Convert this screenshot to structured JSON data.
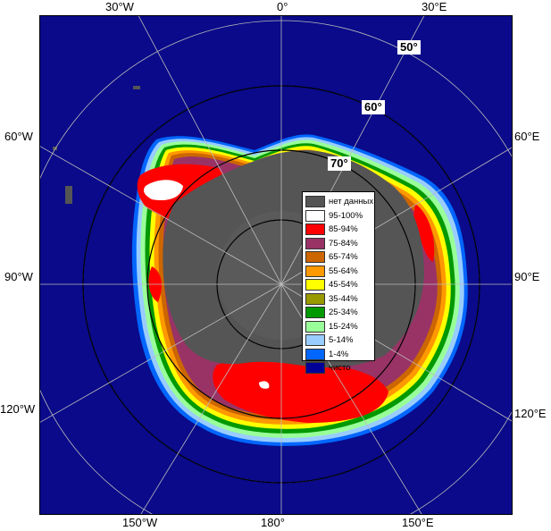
{
  "map": {
    "longitude_labels_top": [
      "30°W",
      "0°",
      "30°E"
    ],
    "longitude_labels_bottom": [
      "150°W",
      "180°",
      "150°E"
    ],
    "longitude_labels_left": [
      "60°W",
      "90°W",
      "120°W"
    ],
    "longitude_labels_right": [
      "60°E",
      "90°E",
      "120°E"
    ],
    "latitude_labels": [
      "50°",
      "60°",
      "70°"
    ]
  },
  "colors": {
    "open_water": "#0a0a8a",
    "no_data": "#555555",
    "land": "#666666"
  },
  "legend": {
    "items": [
      {
        "label": "нет данных",
        "color": "#555555"
      },
      {
        "label": "95-100%",
        "color": "#ffffff"
      },
      {
        "label": "85-94%",
        "color": "#ff0000"
      },
      {
        "label": "75-84%",
        "color": "#993366"
      },
      {
        "label": "65-74%",
        "color": "#cc6600"
      },
      {
        "label": "55-64%",
        "color": "#ff9900"
      },
      {
        "label": "45-54%",
        "color": "#ffff00"
      },
      {
        "label": "35-44%",
        "color": "#999900"
      },
      {
        "label": "25-34%",
        "color": "#009900"
      },
      {
        "label": "15-24%",
        "color": "#99ff99"
      },
      {
        "label": "5-14%",
        "color": "#99ccff"
      },
      {
        "label": "1-4%",
        "color": "#0066ff"
      },
      {
        "label": "чисто",
        "color": "#000099"
      }
    ]
  }
}
